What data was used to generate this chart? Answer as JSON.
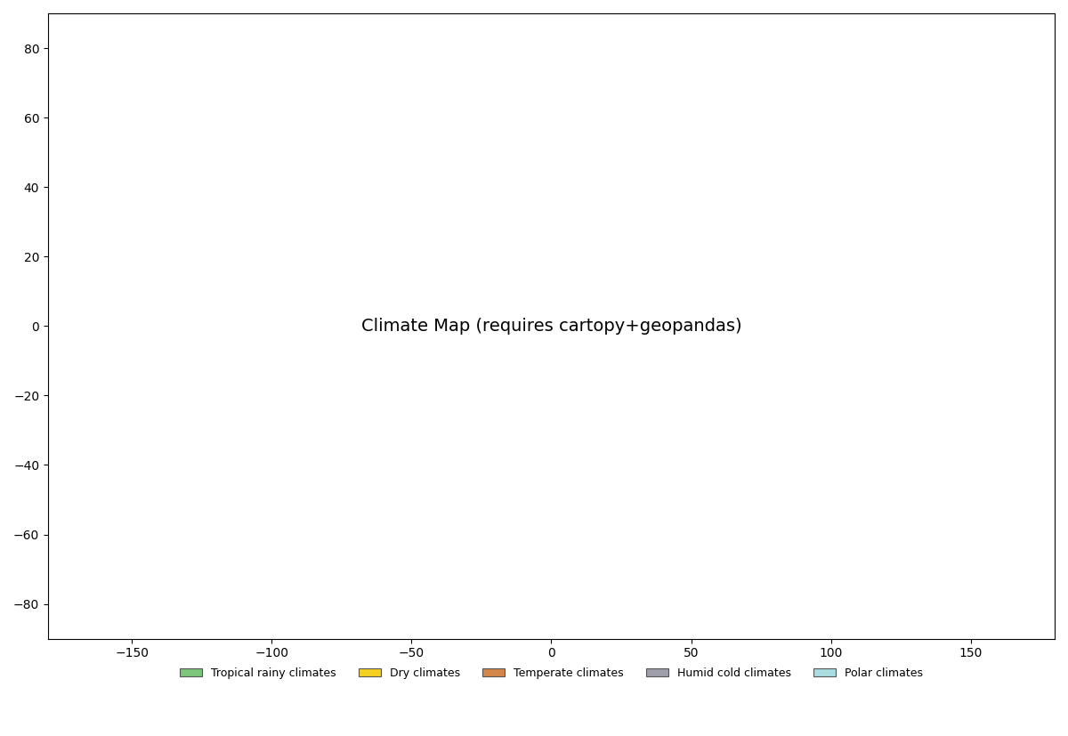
{
  "title": "",
  "background_color": "#ffffff",
  "ocean_color": "#ffffff",
  "border_color": "#1a1a1a",
  "border_width": 0.4,
  "legend_items": [
    {
      "label": "Tropical rainy climates",
      "color": "#7bc67a"
    },
    {
      "label": "Dry climates",
      "color": "#f5d020"
    },
    {
      "label": "Temperate climates",
      "color": "#d4874a"
    },
    {
      "label": "Humid cold climates",
      "color": "#9e9daa"
    },
    {
      "label": "Polar climates",
      "color": "#aadde0"
    }
  ],
  "climate_zones": {
    "polar": "#aadde0",
    "humid_cold": "#9e9daa",
    "temperate": "#d4874a",
    "dry": "#f5d020",
    "tropical": "#7bc67a"
  },
  "figsize": [
    12.0,
    8.27
  ],
  "dpi": 100
}
